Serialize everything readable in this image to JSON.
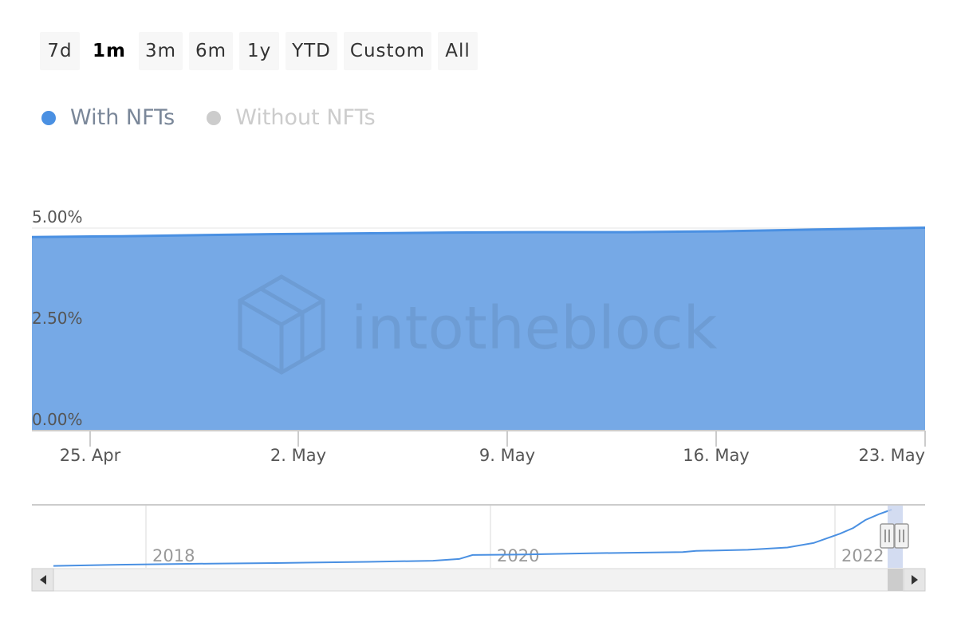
{
  "range_selector": {
    "buttons": [
      "7d",
      "1m",
      "3m",
      "6m",
      "1y",
      "YTD",
      "Custom",
      "All"
    ],
    "active": "1m"
  },
  "legend": [
    {
      "label": "With NFTs",
      "color": "#4a90e2",
      "visible": true
    },
    {
      "label": "Without NFTs",
      "color": "#cccccc",
      "visible": false
    }
  ],
  "watermark": "intotheblock",
  "chart_data": {
    "type": "area",
    "title": "",
    "xlabel": "",
    "ylabel": "",
    "ylim": [
      0,
      5
    ],
    "yticks": [
      "0.00%",
      "2.50%",
      "5.00%"
    ],
    "ytick_values": [
      0,
      2.5,
      5
    ],
    "xticks": [
      "25. Apr",
      "2. May",
      "9. May",
      "16. May",
      "23. May"
    ],
    "xlim": [
      "2022-04-23",
      "2022-05-23"
    ],
    "grid": true,
    "series": [
      {
        "name": "With NFTs",
        "color": "#4a90e2",
        "fill": "#76a9e6",
        "x": [
          "2022-04-23",
          "2022-04-26",
          "2022-04-29",
          "2022-05-01",
          "2022-05-04",
          "2022-05-07",
          "2022-05-10",
          "2022-05-13",
          "2022-05-16",
          "2022-05-19",
          "2022-05-23"
        ],
        "y": [
          4.78,
          4.8,
          4.83,
          4.85,
          4.87,
          4.89,
          4.9,
          4.9,
          4.92,
          4.96,
          5.01
        ]
      }
    ]
  },
  "navigator": {
    "year_labels": [
      "2018",
      "2020",
      "2022"
    ],
    "series_x": [
      "2017-01",
      "2017-06",
      "2018-01",
      "2018-06",
      "2019-01",
      "2019-06",
      "2019-08",
      "2019-09",
      "2020-01",
      "2020-06",
      "2021-01",
      "2021-02",
      "2021-06",
      "2021-09",
      "2021-11",
      "2022-01",
      "2022-02",
      "2022-03",
      "2022-04",
      "2022-05"
    ],
    "series_y": [
      0.1,
      0.2,
      0.3,
      0.35,
      0.45,
      0.55,
      0.7,
      1.05,
      1.1,
      1.2,
      1.3,
      1.4,
      1.5,
      1.7,
      2.1,
      2.9,
      3.4,
      4.1,
      4.6,
      5.0
    ]
  }
}
